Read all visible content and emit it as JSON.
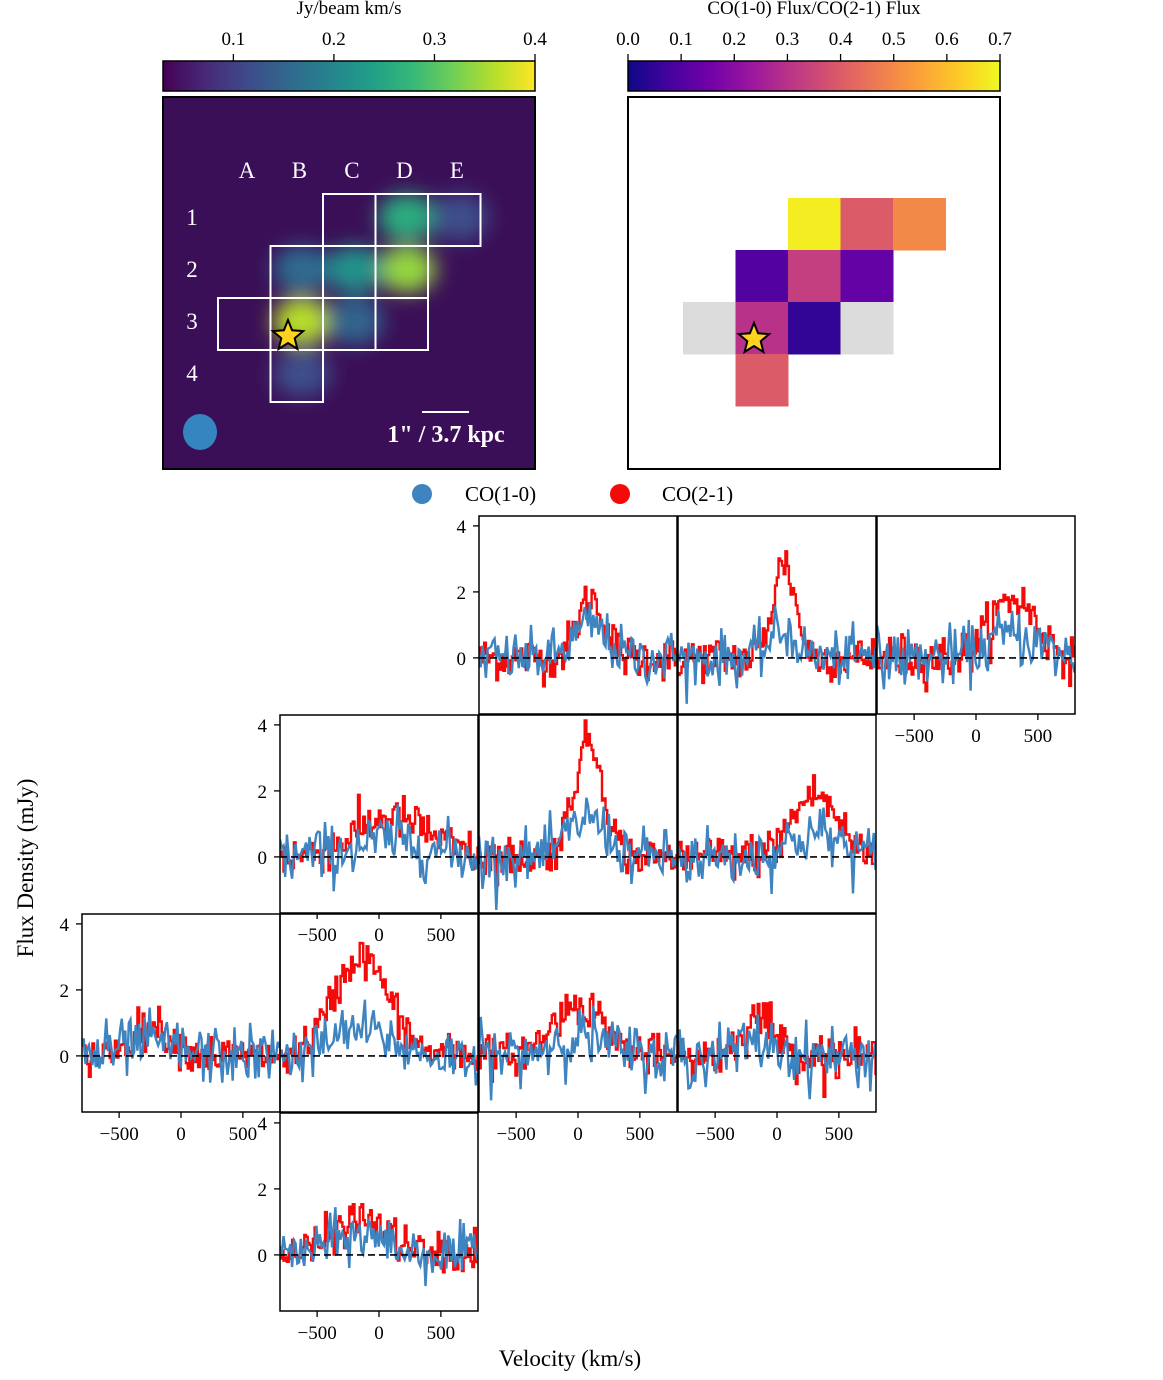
{
  "colors": {
    "map_background": "#3b0f57",
    "grid_line": "#ffffff",
    "star_fill": "#ffd21f",
    "co10_line": "#3d84c1",
    "co21_line": "#f50a0a",
    "beam": "#3586c0",
    "no_data": "#dcdcdc"
  },
  "chart_data": [
    {
      "type": "heatmap",
      "name": "moment0_map",
      "colorbar_label": "Jy/beam km/s",
      "colormap": "viridis",
      "colorbar_range": [
        0.03,
        0.4
      ],
      "colorbar_ticks": [
        "0.1",
        "0.2",
        "0.3",
        "0.4"
      ],
      "colorbar_tick_values": [
        0.1,
        0.2,
        0.3,
        0.4
      ],
      "column_labels": [
        "A",
        "B",
        "C",
        "D",
        "E"
      ],
      "row_labels": [
        "1",
        "2",
        "3",
        "4"
      ],
      "grid_cells": [
        "C1",
        "D1",
        "E1",
        "B2",
        "C2",
        "D2",
        "A3",
        "B3",
        "C3",
        "D3",
        "B4"
      ],
      "star_cell": "B3",
      "scalebar_label": "1\" / 3.7 kpc",
      "emission_peaks": [
        {
          "cell": "B3",
          "value": 0.36
        },
        {
          "cell": "D2",
          "value": 0.34
        },
        {
          "cell": "D1",
          "value": 0.26
        },
        {
          "cell": "C2",
          "value": 0.22
        },
        {
          "cell": "B2",
          "value": 0.16
        },
        {
          "cell": "C3",
          "value": 0.15
        },
        {
          "cell": "B4",
          "value": 0.12
        },
        {
          "cell": "E1",
          "value": 0.12
        }
      ]
    },
    {
      "type": "heatmap",
      "name": "ratio_map",
      "colorbar_label": "CO(1-0) Flux/CO(2-1) Flux",
      "colormap": "plasma",
      "colorbar_range": [
        0.0,
        0.7
      ],
      "colorbar_ticks": [
        "0.0",
        "0.1",
        "0.2",
        "0.3",
        "0.4",
        "0.5",
        "0.6",
        "0.7"
      ],
      "star_cell": "B3",
      "cells": [
        {
          "cell": "C1",
          "ratio": 0.68
        },
        {
          "cell": "D1",
          "ratio": 0.4
        },
        {
          "cell": "E1",
          "ratio": 0.5
        },
        {
          "cell": "B2",
          "ratio": 0.1
        },
        {
          "cell": "C2",
          "ratio": 0.33
        },
        {
          "cell": "D2",
          "ratio": 0.13
        },
        {
          "cell": "A3",
          "ratio": null
        },
        {
          "cell": "B3",
          "ratio": 0.3
        },
        {
          "cell": "C3",
          "ratio": 0.05
        },
        {
          "cell": "D3",
          "ratio": null
        },
        {
          "cell": "B4",
          "ratio": 0.4
        }
      ]
    },
    {
      "type": "line",
      "name": "spectra_grid",
      "xlabel": "Velocity (km/s)",
      "ylabel": "Flux Density (mJy)",
      "xlim": [
        -800,
        800
      ],
      "ylim": [
        -1.7,
        4.3
      ],
      "xticks": [
        -500,
        0,
        500
      ],
      "yticks": [
        0,
        2,
        4
      ],
      "legend": {
        "position": "top-center",
        "entries": [
          "CO(1-0)",
          "CO(2-1)"
        ]
      },
      "baseline": 0,
      "panels": [
        {
          "cell": "C1",
          "co21": {
            "center": 100,
            "width": 110,
            "peak": 1.8,
            "noise": 0.33
          },
          "co10": {
            "center": 100,
            "width": 130,
            "peak": 1.0,
            "noise": 0.4
          }
        },
        {
          "cell": "D1",
          "co21": {
            "center": 50,
            "width": 90,
            "peak": 2.9,
            "noise": 0.33
          },
          "co10": {
            "center": 50,
            "width": 110,
            "peak": 0.8,
            "noise": 0.4
          }
        },
        {
          "cell": "E1",
          "co21": {
            "center": 300,
            "width": 180,
            "peak": 1.8,
            "noise": 0.35
          },
          "co10": {
            "center": 300,
            "width": 200,
            "peak": 0.7,
            "noise": 0.45
          }
        },
        {
          "cell": "B2",
          "co21": {
            "center": 100,
            "width": 300,
            "peak": 1.2,
            "noise": 0.33
          },
          "co10": {
            "center": 100,
            "width": 300,
            "peak": 0.5,
            "noise": 0.45
          }
        },
        {
          "cell": "C2",
          "co21": {
            "center": 80,
            "width": 120,
            "peak": 3.5,
            "noise": 0.3
          },
          "co10": {
            "center": 80,
            "width": 150,
            "peak": 1.2,
            "noise": 0.4
          }
        },
        {
          "cell": "D2",
          "co21": {
            "center": 300,
            "width": 180,
            "peak": 1.9,
            "noise": 0.33
          },
          "co10": {
            "center": 300,
            "width": 200,
            "peak": 0.7,
            "noise": 0.45
          }
        },
        {
          "cell": "A3",
          "co21": {
            "center": -250,
            "width": 170,
            "peak": 0.9,
            "noise": 0.3
          },
          "co10": {
            "center": -250,
            "width": 200,
            "peak": 0.4,
            "noise": 0.45
          }
        },
        {
          "cell": "B3",
          "co21": {
            "center": -150,
            "width": 220,
            "peak": 3.0,
            "noise": 0.3
          },
          "co10": {
            "center": -150,
            "width": 230,
            "peak": 0.8,
            "noise": 0.4
          }
        },
        {
          "cell": "C3",
          "co21": {
            "center": 0,
            "width": 200,
            "peak": 1.6,
            "noise": 0.3
          },
          "co10": {
            "center": 0,
            "width": 220,
            "peak": 0.6,
            "noise": 0.45
          }
        },
        {
          "cell": "D3",
          "co21": {
            "center": -150,
            "width": 130,
            "peak": 1.2,
            "noise": 0.33
          },
          "co10": {
            "center": -150,
            "width": 150,
            "peak": 0.4,
            "noise": 0.45
          }
        },
        {
          "cell": "B4",
          "co21": {
            "center": -150,
            "width": 220,
            "peak": 1.1,
            "noise": 0.3
          },
          "co10": {
            "center": -150,
            "width": 230,
            "peak": 0.6,
            "noise": 0.4
          }
        }
      ]
    }
  ]
}
